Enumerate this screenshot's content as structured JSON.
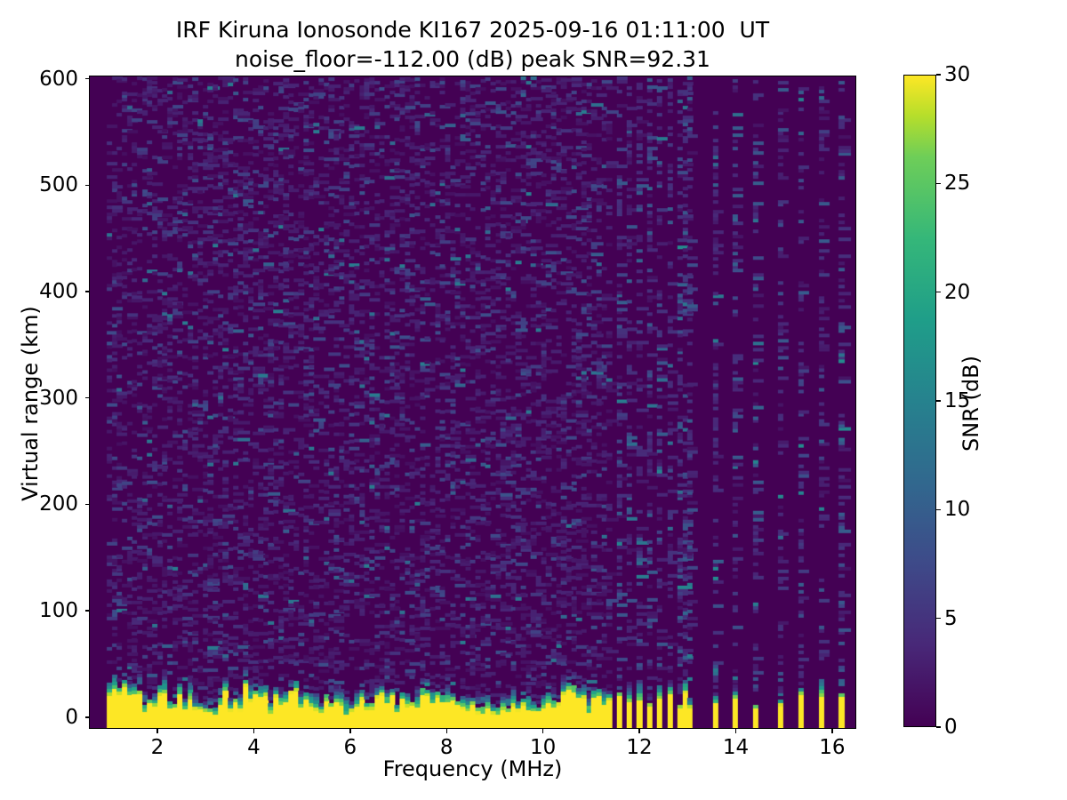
{
  "figure": {
    "title_line1": "IRF Kiruna Ionosonde KI167 2025-09-16 01:11:00  UT",
    "title_line2": "noise_floor=-112.00 (dB) peak SNR=92.31"
  },
  "axes": {
    "xlabel": "Frequency (MHz)",
    "ylabel": "Virtual range (km)",
    "xticks": [
      2,
      4,
      6,
      8,
      10,
      12,
      14,
      16
    ],
    "yticks": [
      0,
      100,
      200,
      300,
      400,
      500,
      600
    ],
    "xlim": [
      0.58,
      16.5
    ],
    "ylim": [
      -11,
      603
    ]
  },
  "colorbar": {
    "label": "SNR (dB)",
    "ticks": [
      0,
      5,
      10,
      15,
      20,
      25,
      30
    ],
    "vmin": 0,
    "vmax": 30
  },
  "chart_data": {
    "type": "heatmap",
    "title": "IRF Kiruna Ionosonde KI167 2025-09-16 01:11:00  UT",
    "subtitle": "noise_floor=-112.00 (dB) peak SNR=92.31",
    "xlabel": "Frequency (MHz)",
    "ylabel": "Virtual range (km)",
    "zlabel": "SNR (dB)",
    "xlim": [
      0.58,
      16.5
    ],
    "ylim": [
      -11,
      603
    ],
    "zlim": [
      0,
      30
    ],
    "station": "KI167",
    "timestamp_ut": "2025-09-16 01:11:00",
    "noise_floor_db": -112.0,
    "peak_snr_db": 92.31,
    "colormap": {
      "name": "viridis",
      "stops": [
        [
          0,
          "#440154"
        ],
        [
          0.125,
          "#482878"
        ],
        [
          0.25,
          "#3e4a89"
        ],
        [
          0.375,
          "#31688e"
        ],
        [
          0.5,
          "#26828e"
        ],
        [
          0.625,
          "#1f9e89"
        ],
        [
          0.75,
          "#35b779"
        ],
        [
          0.875,
          "#6ece58"
        ],
        [
          0.9375,
          "#b5de2b"
        ],
        [
          1,
          "#fde725"
        ]
      ]
    },
    "background_color": "#440154",
    "echo_color": "#fde725",
    "seed": 20250916,
    "sweep": {
      "start_mhz": 0.93,
      "end_mhz": 16.28,
      "freq_step_mhz": 0.105,
      "continuous_until_mhz": 11.42,
      "transition_stripes_mhz": [
        11.55,
        11.75,
        11.95,
        12.15,
        12.35,
        12.55,
        12.75,
        12.95
      ],
      "stepped_freqs_mhz": [
        13.0,
        13.5,
        13.95,
        14.4,
        14.85,
        15.3,
        15.75,
        16.2
      ]
    },
    "echo_band": {
      "description": "strong ground/first-hop echo at 0-45 km virtual range, saturated at 30 dB SNR",
      "yellow_top_base_km": 15,
      "yellow_top_jitter_km": 8,
      "mix_zone_km": [
        8,
        22
      ],
      "stripe_yellow_top_km": [
        6,
        22
      ],
      "notch_freqs_mhz": [
        1.62,
        3.08,
        4.32,
        6.38,
        6.93,
        9.12,
        9.68,
        10.92
      ],
      "notch_prob": 0.05
    },
    "noise": {
      "range_cell_km": 3.2,
      "tiers_continuous": [
        {
          "p": 0.2,
          "snr": [
            1.2,
            3.5
          ]
        },
        {
          "p": 0.08,
          "snr": [
            3.5,
            8.0
          ]
        },
        {
          "p": 0.012,
          "snr": [
            8.0,
            14.0
          ]
        }
      ],
      "tiers_stripe": [
        {
          "p": 0.25,
          "snr": [
            1.5,
            5.0
          ]
        },
        {
          "p": 0.12,
          "snr": [
            4.0,
            10.0
          ]
        },
        {
          "p": 0.03,
          "snr": [
            8.0,
            16.0
          ]
        }
      ]
    }
  }
}
